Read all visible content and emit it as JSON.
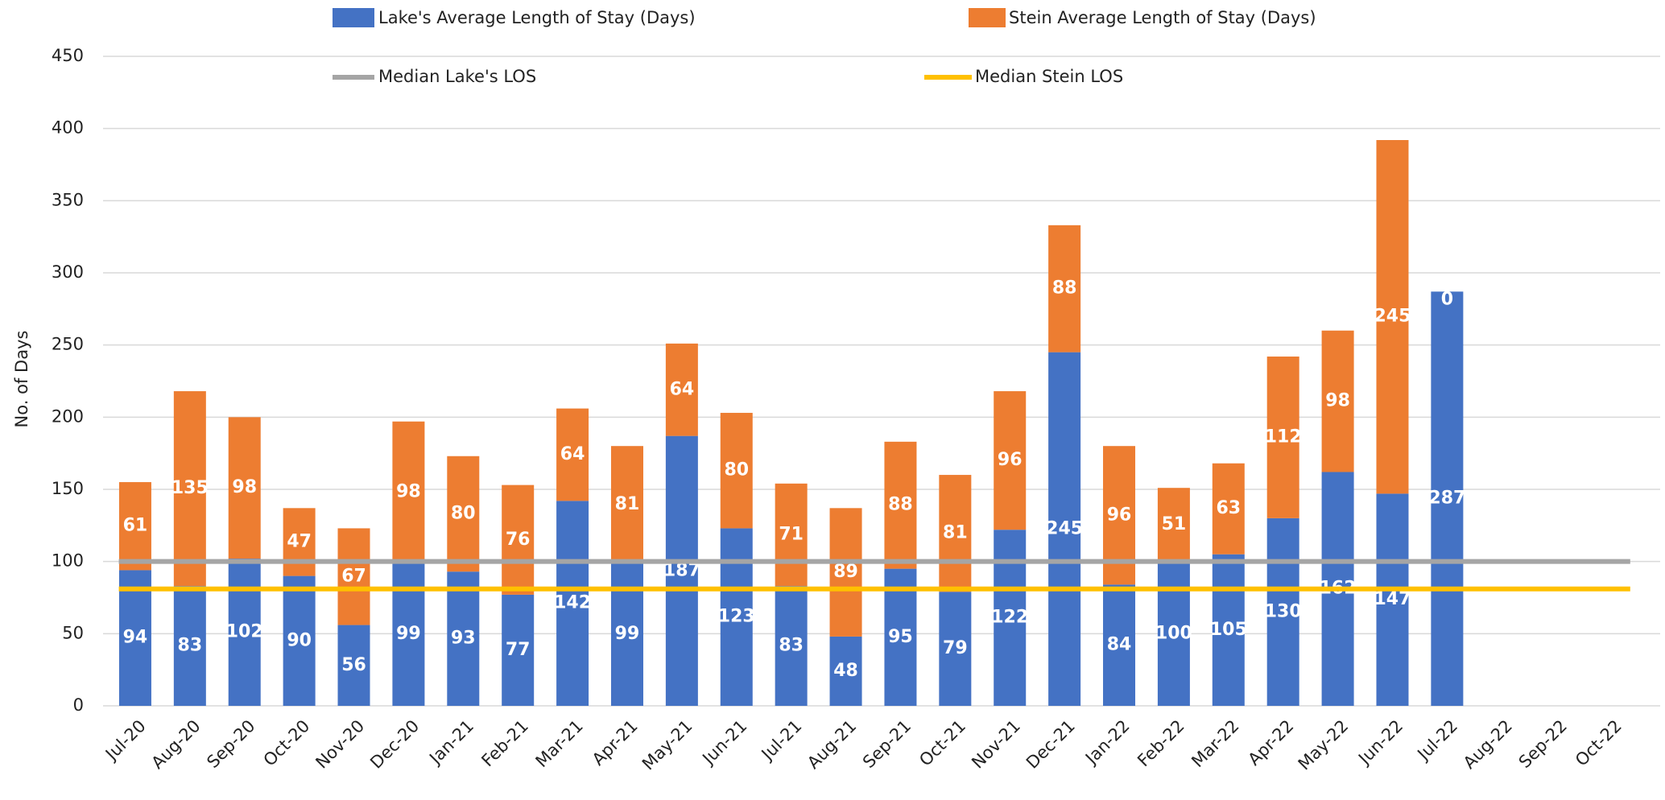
{
  "chart_data": {
    "type": "bar",
    "stacked": true,
    "y_label": "No. of Days",
    "categories": [
      "Jul-20",
      "Aug-20",
      "Sep-20",
      "Oct-20",
      "Nov-20",
      "Dec-20",
      "Jan-21",
      "Feb-21",
      "Mar-21",
      "Apr-21",
      "May-21",
      "Jun-21",
      "Jul-21",
      "Aug-21",
      "Sep-21",
      "Oct-21",
      "Nov-21",
      "Dec-21",
      "Jan-22",
      "Feb-22",
      "Mar-22",
      "Apr-22",
      "May-22",
      "Jun-22",
      "Jul-22",
      "Aug-22",
      "Sep-22",
      "Oct-22"
    ],
    "series": [
      {
        "name": "Lake's Average Length of Stay (Days)",
        "color": "#4472c4",
        "values": [
          94,
          83,
          102,
          90,
          56,
          99,
          93,
          77,
          142,
          99,
          187,
          123,
          83,
          48,
          95,
          79,
          122,
          245,
          84,
          100,
          105,
          130,
          162,
          147,
          287,
          null,
          null,
          null
        ]
      },
      {
        "name": "Stein Average Length of Stay (Days)",
        "color": "#ed7d31",
        "values": [
          61,
          135,
          98,
          47,
          67,
          98,
          80,
          76,
          64,
          81,
          64,
          80,
          71,
          89,
          88,
          81,
          96,
          88,
          96,
          51,
          63,
          112,
          98,
          245,
          0,
          null,
          null,
          null
        ]
      }
    ],
    "reference_lines": [
      {
        "name": "Median Lake's LOS",
        "color": "#a5a5a5",
        "value": 100
      },
      {
        "name": "Median Stein LOS",
        "color": "#ffc000",
        "value": 81
      }
    ],
    "ylim": [
      0,
      450
    ],
    "yticks": [
      0,
      50,
      100,
      150,
      200,
      250,
      300,
      350,
      400,
      450
    ],
    "grid": true
  }
}
